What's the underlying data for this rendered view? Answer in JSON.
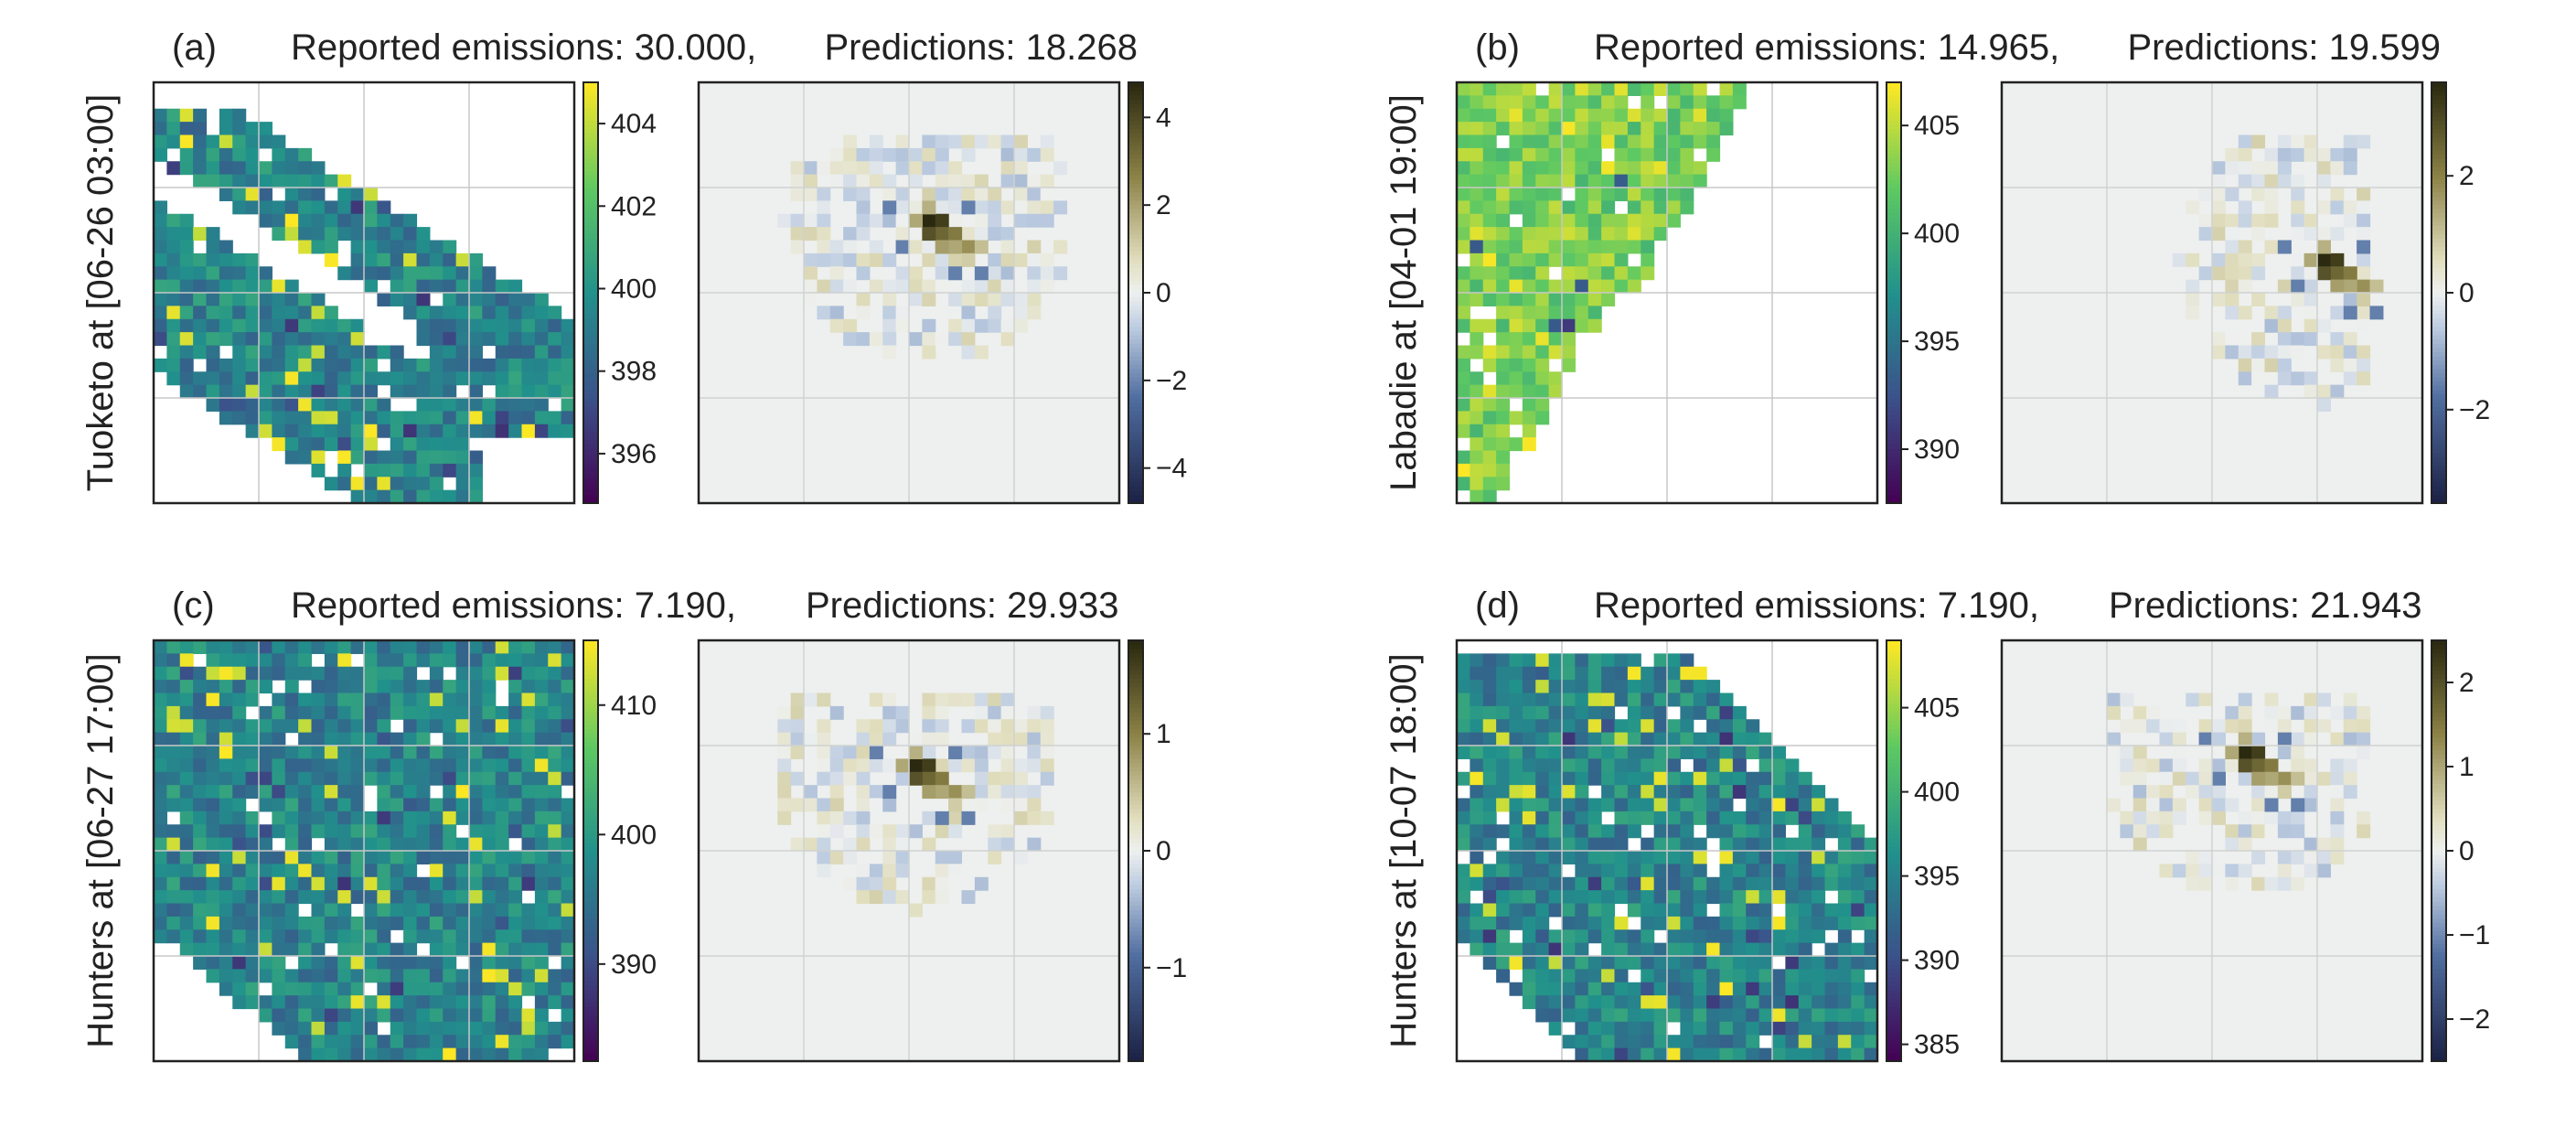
{
  "chart_data": [
    {
      "type": "heatmap",
      "panel": "(a)",
      "site_label": "Tuoketo at [06-26 03:00]",
      "reported_label": "Reported emissions: 30.000,",
      "prediction_label": "Predictions: 18.268",
      "reported_emissions": 30.0,
      "predictions": 18.268,
      "left_map": {
        "colormap": "viridis",
        "colorbar_ticks": [
          "396",
          "398",
          "400",
          "402",
          "404"
        ],
        "vmin": 394.8,
        "vmax": 405.0
      },
      "right_map": {
        "colormap": "cividis-diverging",
        "colorbar_ticks": [
          "−4",
          "−2",
          "0",
          "2",
          "4"
        ],
        "vmin": -4.8,
        "vmax": 4.8
      }
    },
    {
      "type": "heatmap",
      "panel": "(b)",
      "site_label": "Labadie at [04-01 19:00]",
      "reported_label": "Reported emissions: 14.965,",
      "prediction_label": "Predictions: 19.599",
      "reported_emissions": 14.965,
      "predictions": 19.599,
      "left_map": {
        "colormap": "viridis",
        "colorbar_ticks": [
          "390",
          "395",
          "400",
          "405"
        ],
        "vmin": 387.5,
        "vmax": 407.0
      },
      "right_map": {
        "colormap": "cividis-diverging",
        "colorbar_ticks": [
          "−2",
          "0",
          "2"
        ],
        "vmin": -3.6,
        "vmax": 3.6
      }
    },
    {
      "type": "heatmap",
      "panel": "(c)",
      "site_label": "Hunters at [06-27 17:00]",
      "reported_label": "Reported emissions: 7.190,",
      "prediction_label": "Predictions: 29.933",
      "reported_emissions": 7.19,
      "predictions": 29.933,
      "left_map": {
        "colormap": "viridis",
        "colorbar_ticks": [
          "390",
          "400",
          "410"
        ],
        "vmin": 382.5,
        "vmax": 415.0
      },
      "right_map": {
        "colormap": "cividis-diverging",
        "colorbar_ticks": [
          "−1",
          "0",
          "1"
        ],
        "vmin": -1.8,
        "vmax": 1.8
      }
    },
    {
      "type": "heatmap",
      "panel": "(d)",
      "site_label": "Hunters at [10-07 18:00]",
      "reported_label": "Reported emissions: 7.190,",
      "prediction_label": "Predictions: 21.943",
      "reported_emissions": 7.19,
      "predictions": 21.943,
      "left_map": {
        "colormap": "viridis",
        "colorbar_ticks": [
          "385",
          "390",
          "395",
          "400",
          "405"
        ],
        "vmin": 384.0,
        "vmax": 409.0
      },
      "right_map": {
        "colormap": "cividis-diverging",
        "colorbar_ticks": [
          "−2",
          "−1",
          "0",
          "1",
          "2"
        ],
        "vmin": -2.5,
        "vmax": 2.5
      }
    }
  ],
  "colors": {
    "viridis_low": "#440154",
    "viridis_mid": "#21918c",
    "viridis_high": "#fde725",
    "diverging_low": "#1c2246",
    "diverging_zero": "#eef0ef",
    "diverging_high": "#2b2a10"
  }
}
